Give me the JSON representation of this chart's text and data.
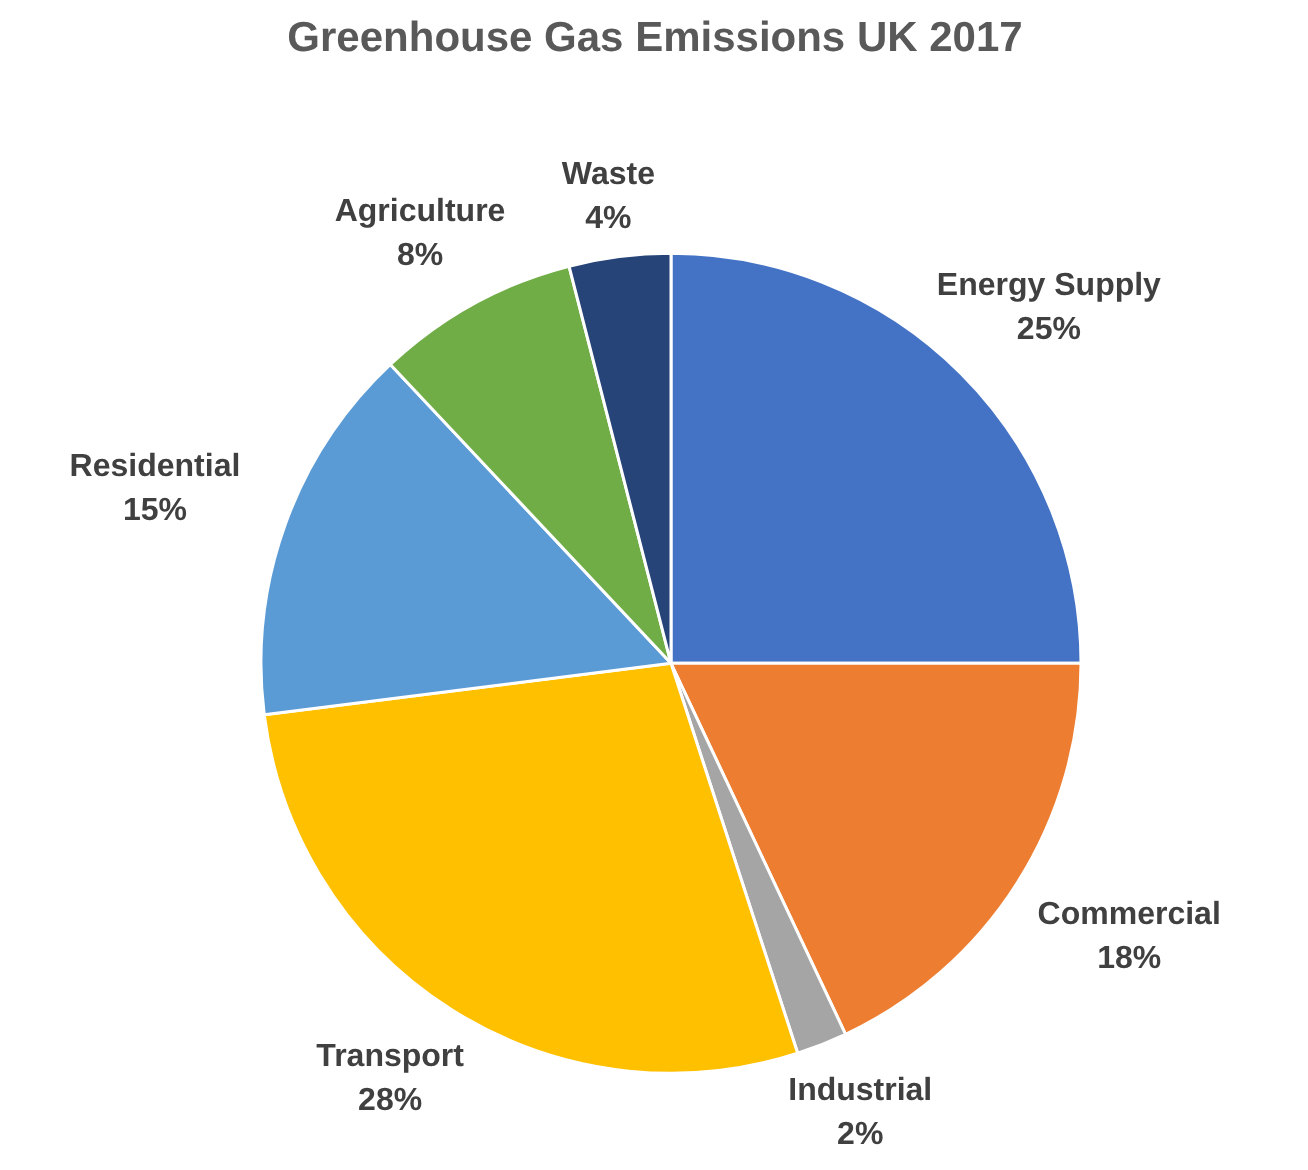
{
  "chart_data": {
    "type": "pie",
    "title": "Greenhouse Gas Emissions UK 2017",
    "categories": [
      "Energy Supply",
      "Commercial",
      "Industrial",
      "Transport",
      "Residential",
      "Agriculture",
      "Waste"
    ],
    "values": [
      25,
      18,
      2,
      28,
      15,
      8,
      4
    ],
    "colors": [
      "#4472c4",
      "#ed7d31",
      "#a5a5a5",
      "#ffc000",
      "#5b9bd5",
      "#70ad47",
      "#264478"
    ],
    "value_labels": [
      "25%",
      "18%",
      "2%",
      "28%",
      "15%",
      "8%",
      "4%"
    ]
  }
}
